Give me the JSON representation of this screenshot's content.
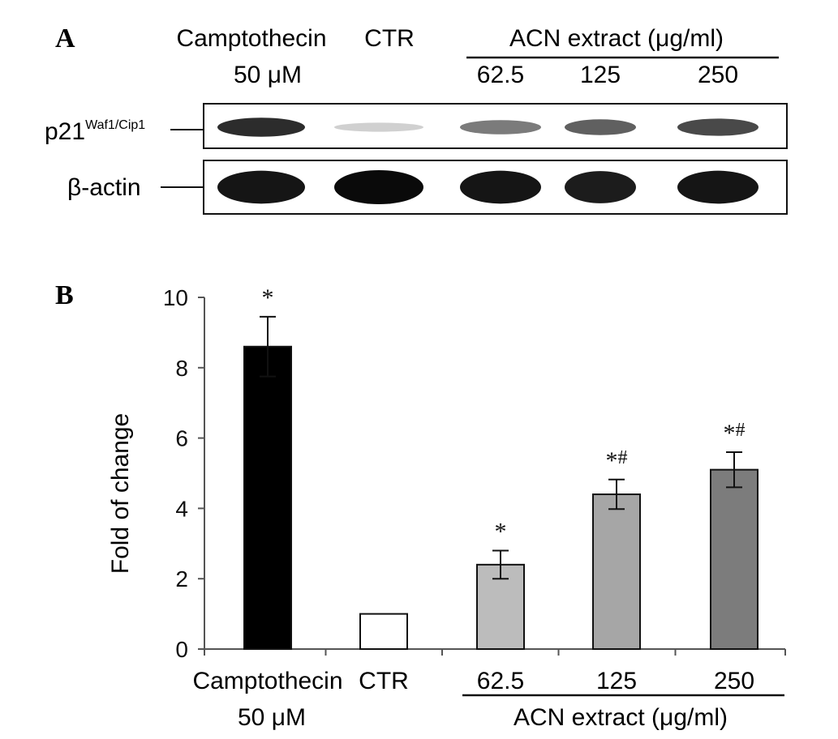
{
  "panel_a": {
    "letter": "A",
    "lanes": [
      "Camptothecin",
      "50 μM",
      "CTR",
      "ACN extract (μg/ml)",
      "62.5",
      "125",
      "250"
    ],
    "row_p21": {
      "label": "p21",
      "superscript": "Waf1/Cip1",
      "intensities": [
        0.85,
        0.12,
        0.5,
        0.62,
        0.72
      ]
    },
    "row_actin": {
      "label": "β-actin",
      "intensities": [
        0.95,
        1.0,
        0.95,
        0.92,
        0.95
      ]
    }
  },
  "chart_data": {
    "type": "bar",
    "letter": "B",
    "categories": [
      "Camptothecin",
      "CTR",
      "62.5",
      "125",
      "250"
    ],
    "category_sublabel": "50 μM",
    "group_label": "ACN extract (μg/ml)",
    "values": [
      8.6,
      1.0,
      2.4,
      4.4,
      5.1
    ],
    "errors": [
      0.85,
      0,
      0.4,
      0.42,
      0.5
    ],
    "colors": [
      "#000000",
      "#ffffff",
      "#bcbcbc",
      "#a6a6a6",
      "#7c7c7c"
    ],
    "annotations": [
      "*",
      "",
      "*",
      "*#",
      "*#"
    ],
    "ylabel": "Fold of change",
    "xlabel": "",
    "ylim": [
      0,
      10
    ],
    "yticks": [
      0,
      2,
      4,
      6,
      8,
      10
    ],
    "grid": false
  }
}
